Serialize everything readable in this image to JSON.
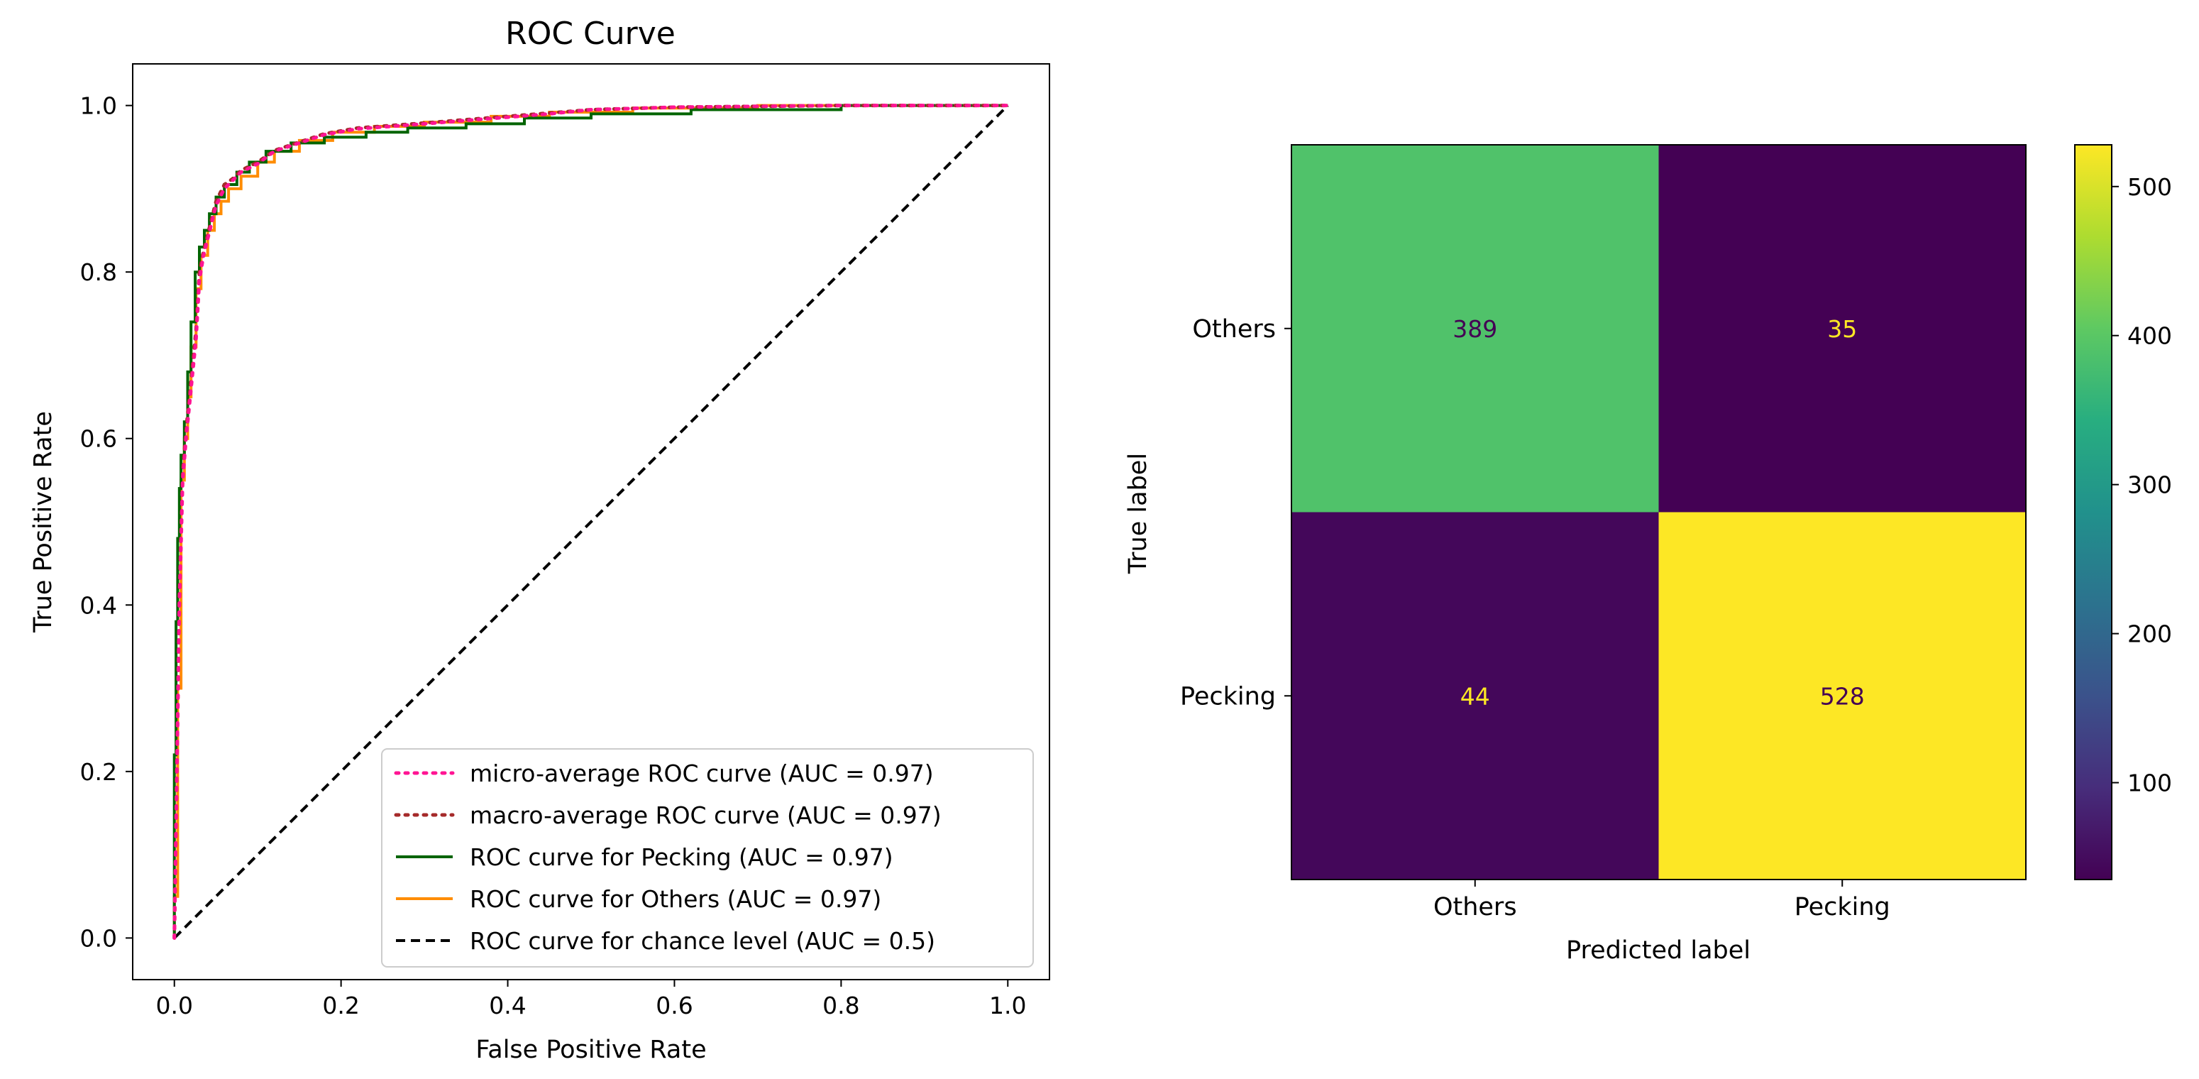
{
  "chart_data": [
    {
      "type": "line",
      "title": "ROC Curve",
      "xlabel": "False Positive Rate",
      "ylabel": "True Positive Rate",
      "xlim": [
        -0.05,
        1.05
      ],
      "ylim": [
        -0.05,
        1.05
      ],
      "xticks": [
        "0.0",
        "0.2",
        "0.4",
        "0.6",
        "0.8",
        "1.0"
      ],
      "yticks": [
        "0.0",
        "0.2",
        "0.4",
        "0.6",
        "0.8",
        "1.0"
      ],
      "grid": false,
      "legend_position": "lower-right",
      "series": [
        {
          "name": "micro-average ROC curve (AUC = 0.97)",
          "color": "#ff1493",
          "dash": "dotted",
          "x": [
            0,
            0.003,
            0.006,
            0.01,
            0.014,
            0.018,
            0.022,
            0.026,
            0.03,
            0.035,
            0.04,
            0.045,
            0.05,
            0.06,
            0.07,
            0.08,
            0.1,
            0.12,
            0.15,
            0.18,
            0.22,
            0.26,
            0.3,
            0.35,
            0.4,
            0.45,
            0.5,
            0.6,
            0.7,
            0.8,
            0.9,
            1.0
          ],
          "y": [
            0,
            0.2,
            0.4,
            0.55,
            0.6,
            0.64,
            0.68,
            0.72,
            0.79,
            0.82,
            0.84,
            0.86,
            0.88,
            0.9,
            0.91,
            0.92,
            0.93,
            0.945,
            0.955,
            0.965,
            0.972,
            0.975,
            0.978,
            0.982,
            0.986,
            0.99,
            0.995,
            0.998,
            0.999,
            1.0,
            1.0,
            1.0
          ]
        },
        {
          "name": "macro-average ROC curve (AUC = 0.97)",
          "color": "#a52a2a",
          "dash": "dotted",
          "x": [
            0,
            0.003,
            0.006,
            0.01,
            0.014,
            0.018,
            0.022,
            0.026,
            0.03,
            0.035,
            0.04,
            0.045,
            0.05,
            0.06,
            0.07,
            0.08,
            0.1,
            0.12,
            0.15,
            0.18,
            0.22,
            0.26,
            0.3,
            0.35,
            0.4,
            0.45,
            0.5,
            0.6,
            0.7,
            0.8,
            0.9,
            1.0
          ],
          "y": [
            0,
            0.21,
            0.41,
            0.56,
            0.61,
            0.65,
            0.69,
            0.73,
            0.8,
            0.825,
            0.845,
            0.865,
            0.885,
            0.905,
            0.912,
            0.922,
            0.932,
            0.946,
            0.956,
            0.966,
            0.973,
            0.976,
            0.979,
            0.983,
            0.987,
            0.991,
            0.995,
            0.998,
            0.999,
            1.0,
            1.0,
            1.0
          ]
        },
        {
          "name": "ROC curve for Pecking (AUC = 0.97)",
          "color": "#006400",
          "dash": "solid",
          "x": [
            0,
            0,
            0.002,
            0.002,
            0.004,
            0.004,
            0.006,
            0.006,
            0.008,
            0.008,
            0.012,
            0.012,
            0.016,
            0.016,
            0.02,
            0.02,
            0.025,
            0.025,
            0.03,
            0.03,
            0.036,
            0.036,
            0.042,
            0.042,
            0.05,
            0.05,
            0.06,
            0.06,
            0.075,
            0.075,
            0.09,
            0.09,
            0.11,
            0.11,
            0.14,
            0.14,
            0.18,
            0.18,
            0.23,
            0.23,
            0.28,
            0.28,
            0.35,
            0.35,
            0.42,
            0.42,
            0.5,
            0.5,
            0.62,
            0.62,
            0.8,
            0.8,
            1.0
          ],
          "y": [
            0,
            0.22,
            0.22,
            0.38,
            0.38,
            0.48,
            0.48,
            0.54,
            0.54,
            0.58,
            0.58,
            0.62,
            0.62,
            0.68,
            0.68,
            0.74,
            0.74,
            0.8,
            0.8,
            0.83,
            0.83,
            0.85,
            0.85,
            0.87,
            0.87,
            0.89,
            0.89,
            0.905,
            0.905,
            0.92,
            0.92,
            0.932,
            0.932,
            0.945,
            0.945,
            0.955,
            0.955,
            0.962,
            0.962,
            0.968,
            0.968,
            0.973,
            0.973,
            0.978,
            0.978,
            0.985,
            0.985,
            0.99,
            0.99,
            0.995,
            0.995,
            1.0,
            1.0
          ]
        },
        {
          "name": "ROC curve for Others (AUC = 0.97)",
          "color": "#ff8c00",
          "dash": "solid",
          "x": [
            0,
            0,
            0.004,
            0.004,
            0.008,
            0.008,
            0.012,
            0.012,
            0.016,
            0.016,
            0.02,
            0.02,
            0.026,
            0.026,
            0.032,
            0.032,
            0.04,
            0.04,
            0.048,
            0.048,
            0.056,
            0.056,
            0.065,
            0.065,
            0.08,
            0.08,
            0.1,
            0.1,
            0.12,
            0.12,
            0.15,
            0.15,
            0.19,
            0.19,
            0.24,
            0.24,
            0.3,
            0.3,
            0.38,
            0.38,
            0.45,
            0.45,
            0.55,
            0.55,
            0.7,
            0.7,
            1.0
          ],
          "y": [
            0,
            0.05,
            0.05,
            0.3,
            0.3,
            0.55,
            0.55,
            0.6,
            0.6,
            0.65,
            0.65,
            0.71,
            0.71,
            0.78,
            0.78,
            0.82,
            0.82,
            0.85,
            0.85,
            0.87,
            0.87,
            0.885,
            0.885,
            0.9,
            0.9,
            0.915,
            0.915,
            0.932,
            0.932,
            0.945,
            0.945,
            0.958,
            0.958,
            0.968,
            0.968,
            0.975,
            0.975,
            0.98,
            0.98,
            0.987,
            0.987,
            0.992,
            0.992,
            0.997,
            0.997,
            1.0,
            1.0
          ]
        },
        {
          "name": "ROC curve for chance level (AUC = 0.5)",
          "color": "#000000",
          "dash": "dashed",
          "x": [
            0,
            1
          ],
          "y": [
            0,
            1
          ]
        }
      ]
    },
    {
      "type": "heatmap",
      "title": "",
      "xlabel": "Predicted label",
      "ylabel": "True label",
      "x_categories": [
        "Others",
        "Pecking"
      ],
      "y_categories": [
        "Others",
        "Pecking"
      ],
      "values": [
        [
          389,
          35
        ],
        [
          44,
          528
        ]
      ],
      "colormap": "viridis",
      "colorbar": {
        "ticks": [
          100,
          200,
          300,
          400,
          500
        ],
        "tick_labels": [
          "100",
          "200",
          "300",
          "400",
          "500"
        ]
      },
      "text_colors": {
        "dark_cells": "#fde725",
        "light_cells": "#440154"
      }
    }
  ]
}
